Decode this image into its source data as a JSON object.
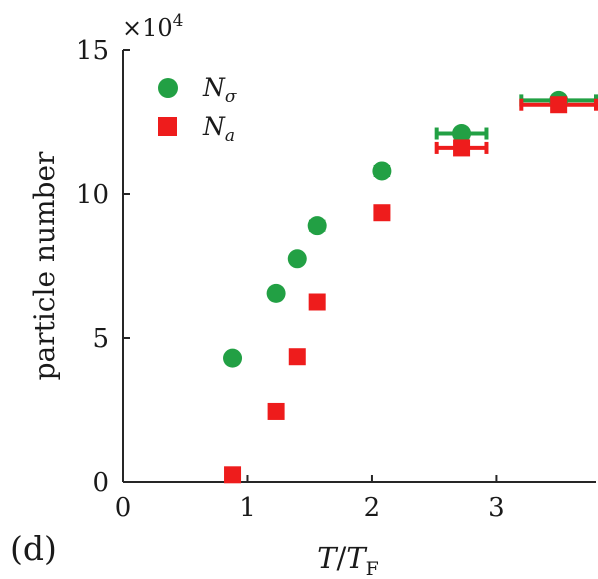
{
  "chart_data": {
    "type": "scatter",
    "panel_label": "(d)",
    "xlabel": "T/T_F",
    "ylabel": "particle number",
    "y_multiplier": "×10^4",
    "xlim": [
      0,
      3.8
    ],
    "ylim": [
      0,
      15
    ],
    "x_ticks": [
      "0",
      "1",
      "2",
      "3"
    ],
    "y_ticks": [
      "0",
      "5",
      "10",
      "15"
    ],
    "grid": false,
    "legend_position": "top-left",
    "series": [
      {
        "name": "N_σ",
        "marker": "circle",
        "color": "#22a044",
        "points": [
          {
            "x": 0.88,
            "y": 4.3,
            "xerr": 0.0
          },
          {
            "x": 1.23,
            "y": 6.55,
            "xerr": 0.0
          },
          {
            "x": 1.4,
            "y": 7.75,
            "xerr": 0.04
          },
          {
            "x": 1.56,
            "y": 8.9,
            "xerr": 0.05
          },
          {
            "x": 2.08,
            "y": 10.8,
            "xerr": 0.05
          },
          {
            "x": 2.72,
            "y": 12.1,
            "xerr": 0.2
          },
          {
            "x": 3.5,
            "y": 13.25,
            "xerr": 0.3
          }
        ]
      },
      {
        "name": "N_a",
        "marker": "square",
        "color": "#ee1c1c",
        "points": [
          {
            "x": 0.88,
            "y": 0.25,
            "xerr": 0.0
          },
          {
            "x": 1.23,
            "y": 2.45,
            "xerr": 0.0
          },
          {
            "x": 1.4,
            "y": 4.35,
            "xerr": 0.04
          },
          {
            "x": 1.56,
            "y": 6.25,
            "xerr": 0.05
          },
          {
            "x": 2.08,
            "y": 9.35,
            "xerr": 0.05
          },
          {
            "x": 2.72,
            "y": 11.6,
            "xerr": 0.2
          },
          {
            "x": 3.5,
            "y": 13.1,
            "xerr": 0.3
          }
        ]
      }
    ]
  }
}
